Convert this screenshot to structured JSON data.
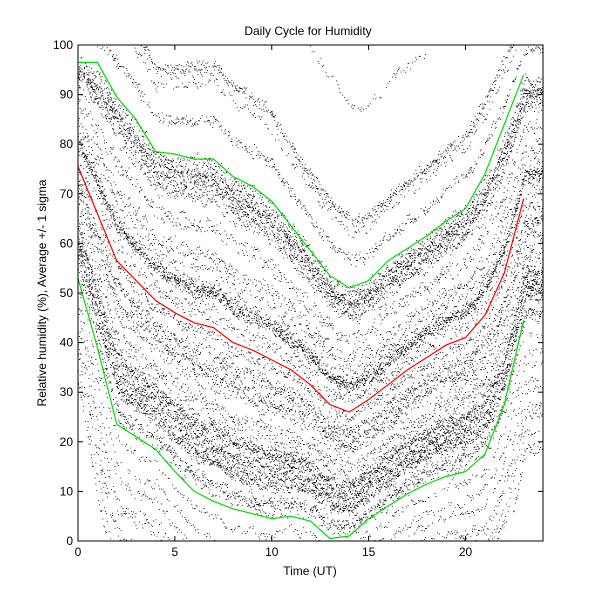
{
  "chart_data": {
    "type": "line",
    "title": "Daily Cycle for Humidity",
    "xlabel": "Time (UT)",
    "ylabel": "Relative humidity (%), Average +/- 1 sigma",
    "xlim": [
      0,
      24
    ],
    "ylim": [
      0,
      100
    ],
    "xticks": [
      0,
      5,
      10,
      15,
      20
    ],
    "yticks": [
      0,
      10,
      20,
      30,
      40,
      50,
      60,
      70,
      80,
      90,
      100
    ],
    "grid": false,
    "legend": "none",
    "background_points": "dense black scatter of individual hourly humidity observations",
    "series": [
      {
        "role": "average",
        "color": "#ff0000",
        "x": [
          0,
          1,
          2,
          3,
          4,
          5,
          6,
          7,
          8,
          9,
          10,
          11,
          12,
          13,
          14,
          15,
          16,
          17,
          18,
          19,
          20,
          21,
          22,
          23
        ],
        "values": [
          75.5,
          66,
          56.5,
          52.5,
          48.5,
          46,
          44,
          43,
          40,
          38.5,
          36.5,
          34.5,
          31.5,
          27.5,
          26,
          28.5,
          31.5,
          34.5,
          37,
          39.5,
          41,
          45.5,
          54,
          69
        ]
      },
      {
        "role": "average + 1 sigma",
        "color": "#00dd00",
        "x": [
          0,
          1,
          2,
          3,
          4,
          5,
          6,
          7,
          8,
          9,
          10,
          11,
          12,
          13,
          14,
          15,
          16,
          17,
          18,
          19,
          20,
          21,
          22,
          23
        ],
        "values": [
          96.5,
          96.5,
          89.5,
          85,
          78.5,
          78,
          77,
          77,
          73.5,
          71.5,
          68.5,
          63.5,
          58.5,
          53.5,
          51,
          52.5,
          56.5,
          59,
          61.5,
          64.5,
          67,
          74,
          84,
          94
        ]
      },
      {
        "role": "average - 1 sigma",
        "color": "#00dd00",
        "x": [
          0,
          1,
          2,
          3,
          4,
          5,
          6,
          7,
          8,
          9,
          10,
          11,
          12,
          13,
          14,
          15,
          16,
          17,
          18,
          19,
          20,
          21,
          22,
          23
        ],
        "values": [
          53,
          39,
          23.5,
          21,
          18.5,
          14,
          10,
          8,
          6.5,
          5.5,
          4.5,
          5,
          4,
          0.5,
          1,
          4.5,
          7,
          9.5,
          11.5,
          13,
          14,
          17.5,
          27.5,
          44.5
        ]
      }
    ]
  }
}
